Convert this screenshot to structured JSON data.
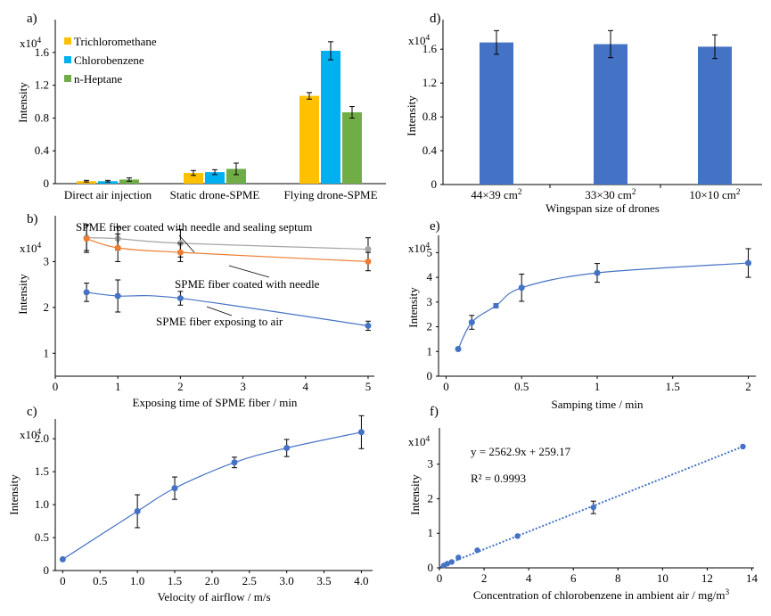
{
  "chart_data": [
    {
      "panel": "a)",
      "type": "bar",
      "multiplier": "x10",
      "multiplier_exp": "4",
      "ylabel": "Intensity",
      "ylim": [
        0,
        2.0
      ],
      "yticks": [
        0,
        0.4,
        0.8,
        1.2,
        1.6
      ],
      "ytick_labels": [
        "0",
        "0.4",
        "0.8",
        "1.2",
        "1.6"
      ],
      "categories": [
        "Direct air injection",
        "Static drone-SPME",
        "Flying drone-SPME"
      ],
      "series": [
        {
          "name": "Trichloromethane",
          "color": "#ffc000",
          "values": [
            0.03,
            0.13,
            1.07
          ],
          "errors": [
            0.01,
            0.03,
            0.04
          ]
        },
        {
          "name": "Chlorobenzene",
          "color": "#00b0f0",
          "values": [
            0.03,
            0.14,
            1.62
          ],
          "errors": [
            0.01,
            0.03,
            0.11
          ]
        },
        {
          "name": "n-Heptane",
          "color": "#70ad47",
          "values": [
            0.05,
            0.18,
            0.87
          ],
          "errors": [
            0.02,
            0.07,
            0.07
          ]
        }
      ]
    },
    {
      "panel": "b)",
      "type": "line",
      "multiplier": "x10",
      "multiplier_exp": "4",
      "ylabel": "Intensity",
      "xlabel": "Exposing time of SPME fiber / min",
      "xlim": [
        0,
        5.1
      ],
      "ylim": [
        0.5,
        4.0
      ],
      "xticks": [
        0,
        1,
        2,
        3,
        4,
        5
      ],
      "xtick_labels": [
        "0",
        "1",
        "2",
        "3",
        "4",
        "5"
      ],
      "yticks": [
        1,
        2,
        3
      ],
      "ytick_labels": [
        "1",
        "2",
        "3"
      ],
      "x": [
        0.5,
        1,
        2,
        5
      ],
      "series": [
        {
          "name": "SPME fiber coated with needle and sealing septum",
          "color": "#a5a5a5",
          "values": [
            3.52,
            3.5,
            3.4,
            3.27
          ],
          "errors": [
            0.28,
            0.25,
            0.3,
            0.25
          ]
        },
        {
          "name": "SPME fiber coated with needle",
          "color": "#ed7d31",
          "values": [
            3.5,
            3.3,
            3.2,
            3.0
          ],
          "errors": [
            0.3,
            0.3,
            0.2,
            0.2
          ]
        },
        {
          "name": "SPME fiber exposing to air",
          "color": "#4472c4",
          "values": [
            2.33,
            2.25,
            2.2,
            1.6
          ],
          "errors": [
            0.2,
            0.35,
            0.15,
            0.1
          ]
        }
      ]
    },
    {
      "panel": "c)",
      "type": "line",
      "multiplier": "x10",
      "multiplier_exp": "4",
      "ylabel": "Intensity",
      "xlabel": "Velocity of airflow / m/s",
      "xlim": [
        -0.1,
        4.15
      ],
      "ylim": [
        0,
        2.3
      ],
      "xticks": [
        0,
        0.5,
        1.0,
        1.5,
        2.0,
        2.5,
        3.0,
        3.5,
        4.0
      ],
      "xtick_labels": [
        "0",
        "0.5",
        "1.0",
        "1.5",
        "2.0",
        "2.5",
        "3.0",
        "3.5",
        "4.0"
      ],
      "yticks": [
        0,
        0.5,
        1.0,
        1.5,
        2.0
      ],
      "ytick_labels": [
        "0",
        "0.5",
        "1.0",
        "1.5",
        "2.0"
      ],
      "series": [
        {
          "color": "#4472c4",
          "x": [
            0,
            1,
            1.5,
            2.3,
            3,
            4
          ],
          "values": [
            0.17,
            0.9,
            1.25,
            1.64,
            1.86,
            2.1
          ],
          "errors": [
            0,
            0.25,
            0.17,
            0.08,
            0.13,
            0.25
          ]
        }
      ]
    },
    {
      "panel": "d)",
      "type": "bar",
      "multiplier": "x10",
      "multiplier_exp": "4",
      "ylabel": "Intensity",
      "xlabel": "Wingspan size of drones",
      "ylim": [
        0,
        1.95
      ],
      "yticks": [
        0,
        0.4,
        0.8,
        1.2,
        1.6
      ],
      "ytick_labels": [
        "0",
        "0.4",
        "0.8",
        "1.2",
        "1.6"
      ],
      "categories": [
        "44×39 cm",
        "33×30 cm",
        "10×10 cm"
      ],
      "category_sup": "2",
      "series": [
        {
          "color": "#4472c4",
          "values": [
            1.68,
            1.66,
            1.63
          ],
          "errors": [
            0.14,
            0.16,
            0.14
          ]
        }
      ]
    },
    {
      "panel": "e)",
      "type": "line",
      "multiplier": "x10",
      "multiplier_exp": "4",
      "ylabel": "Intensity",
      "xlabel": "Samping time / min",
      "xlim": [
        -0.05,
        2.05
      ],
      "ylim": [
        0,
        5.7
      ],
      "xticks": [
        0,
        0.5,
        1.0,
        1.5,
        2.0
      ],
      "xtick_labels": [
        "0",
        "0.5",
        "1",
        "1.5",
        "2"
      ],
      "yticks": [
        0,
        1,
        2,
        3,
        4,
        5
      ],
      "ytick_labels": [
        "0",
        "1",
        "2",
        "3",
        "4",
        "5"
      ],
      "series": [
        {
          "color": "#4472c4",
          "x": [
            0.08,
            0.17,
            0.33,
            0.5,
            1.0,
            2.0
          ],
          "values": [
            1.1,
            2.18,
            2.85,
            3.58,
            4.18,
            4.58
          ],
          "errors": [
            0,
            0.28,
            0,
            0.55,
            0.38,
            0.58
          ]
        }
      ]
    },
    {
      "panel": "f)",
      "type": "scatter",
      "multiplier": "x10",
      "multiplier_exp": "4",
      "ylabel": "Intensity",
      "xlabel": "Concentration of chlorobenzene in ambient air / mg/m",
      "xlabel_sup": "3",
      "xlim": [
        0,
        14.1
      ],
      "ylim": [
        0,
        4.05
      ],
      "xticks": [
        0,
        2,
        4,
        6,
        8,
        10,
        12,
        14
      ],
      "xtick_labels": [
        "0",
        "2",
        "4",
        "6",
        "8",
        "10",
        "12",
        "14"
      ],
      "yticks": [
        0,
        1,
        2,
        3
      ],
      "ytick_labels": [
        "0",
        "1",
        "2",
        "3"
      ],
      "equation": "y = 2562.9x + 259.17",
      "r_squared": "R² = 0.9993",
      "fit": {
        "slope": 2562.9,
        "intercept": 259.17,
        "x_range": [
          0,
          13.6
        ]
      },
      "series": [
        {
          "color": "#4472c4",
          "x": [
            0.2,
            0.35,
            0.55,
            0.85,
            1.7,
            3.5,
            6.9,
            13.6
          ],
          "values": [
            0.07,
            0.12,
            0.17,
            0.3,
            0.51,
            0.92,
            1.75,
            3.51
          ],
          "errors": [
            0,
            0,
            0,
            0,
            0,
            0,
            0.18,
            0
          ]
        }
      ]
    }
  ]
}
